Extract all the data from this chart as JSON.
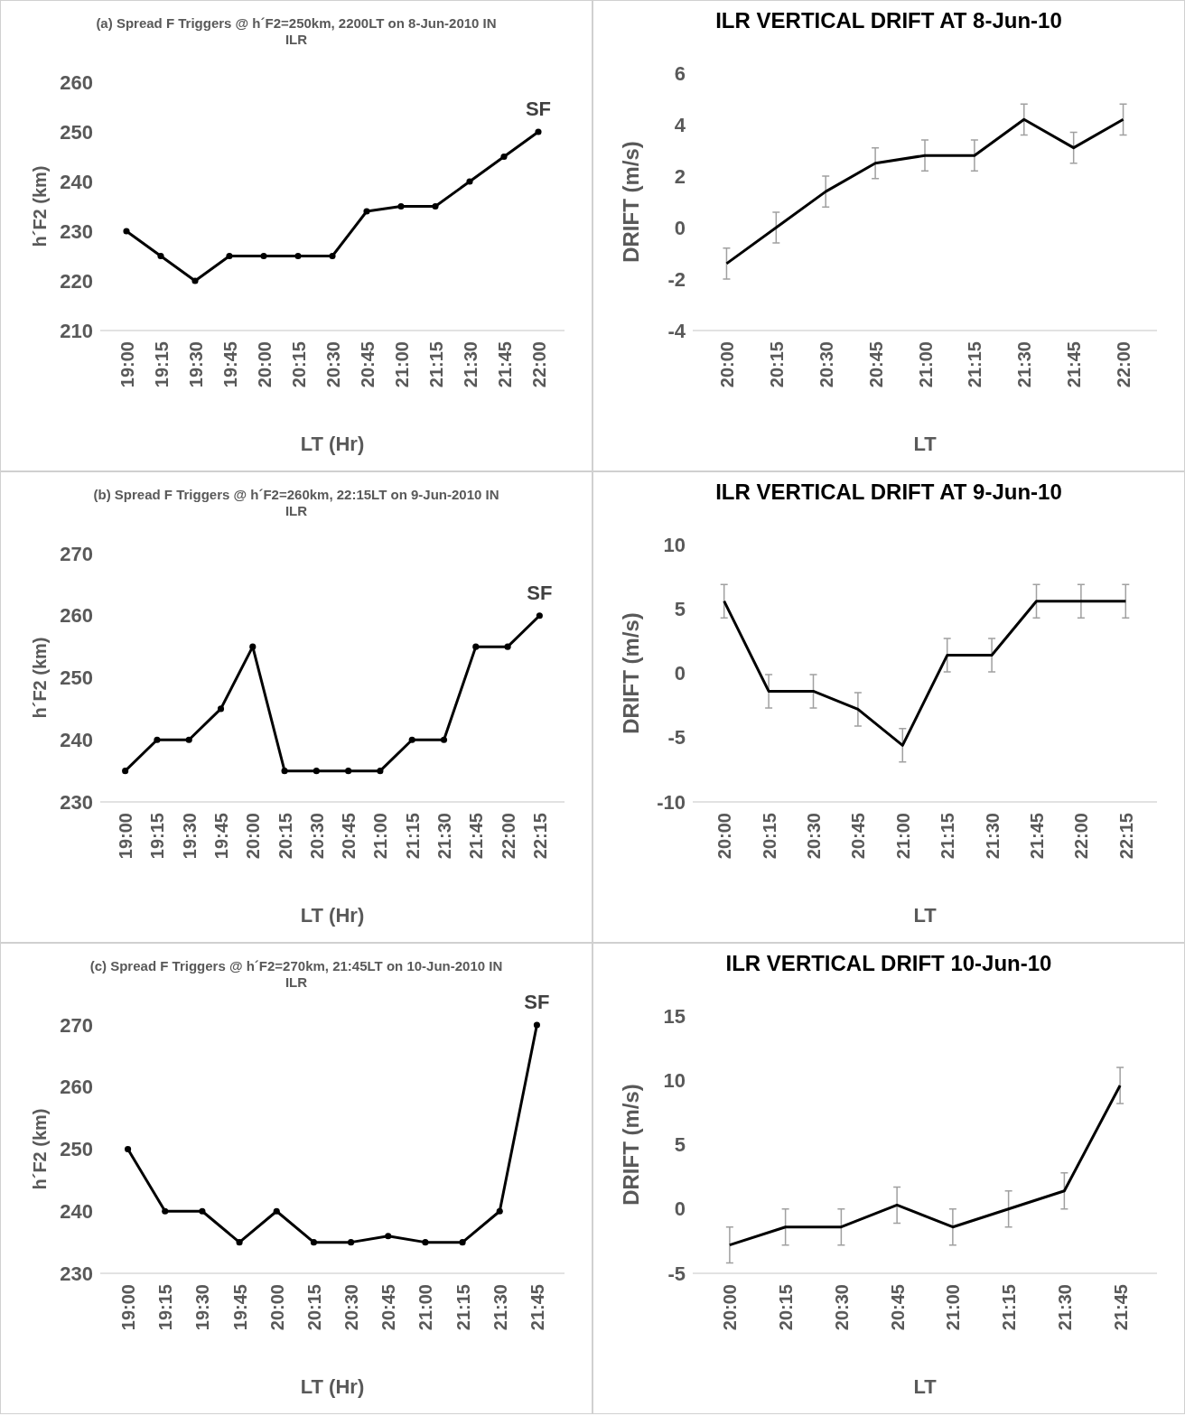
{
  "chart_data": [
    {
      "type": "line",
      "title": "(a) Spread F Triggers @ h´F2=250km, 2200LT on 8-Jun-2010 IN ILR",
      "xlabel": "LT (Hr)",
      "ylabel": "h´F2 (km)",
      "categories": [
        "19:00",
        "19:15",
        "19:30",
        "19:45",
        "20:00",
        "20:15",
        "20:30",
        "20:45",
        "21:00",
        "21:15",
        "21:30",
        "21:45",
        "22:00"
      ],
      "values": [
        230,
        225,
        220,
        225,
        225,
        225,
        225,
        234,
        235,
        235,
        240,
        245,
        250
      ],
      "color": "#000000",
      "marker": "circle",
      "ylim": [
        210,
        260
      ],
      "yticks": [
        210,
        220,
        230,
        240,
        250,
        260
      ],
      "annotations": [
        {
          "text": "SF",
          "x": "22:00",
          "y": 250
        }
      ]
    },
    {
      "type": "line",
      "title": "ILR VERTICAL DRIFT AT 8-Jun-10",
      "xlabel": "LT",
      "ylabel": "DRIFT (m/s)",
      "categories": [
        "20:00",
        "20:15",
        "20:30",
        "20:45",
        "21:00",
        "21:15",
        "21:30",
        "21:45",
        "22:00"
      ],
      "values": [
        -1.4,
        0,
        1.4,
        2.5,
        2.8,
        2.8,
        4.2,
        3.1,
        4.2
      ],
      "errors": [
        0.6,
        0.6,
        0.6,
        0.6,
        0.6,
        0.6,
        0.6,
        0.6,
        0.6
      ],
      "color": "#000000",
      "ylim": [
        -4,
        6
      ],
      "yticks": [
        -4,
        -2,
        0,
        2,
        4,
        6
      ]
    },
    {
      "type": "line",
      "title": "(b) Spread F Triggers @ h´F2=260km, 22:15LT on 9-Jun-2010 IN ILR",
      "xlabel": "LT (Hr)",
      "ylabel": "h´F2 (km)",
      "categories": [
        "19:00",
        "19:15",
        "19:30",
        "19:45",
        "20:00",
        "20:15",
        "20:30",
        "20:45",
        "21:00",
        "21:15",
        "21:30",
        "21:45",
        "22:00",
        "22:15"
      ],
      "values": [
        235,
        240,
        240,
        245,
        255,
        235,
        235,
        235,
        235,
        240,
        240,
        255,
        255,
        260
      ],
      "color": "#000000",
      "marker": "circle",
      "ylim": [
        230,
        270
      ],
      "yticks": [
        230,
        240,
        250,
        260,
        270
      ],
      "annotations": [
        {
          "text": "SF",
          "x": "22:15",
          "y": 260
        }
      ]
    },
    {
      "type": "line",
      "title": "ILR VERTICAL DRIFT AT 9-Jun-10",
      "xlabel": "LT",
      "ylabel": "DRIFT (m/s)",
      "categories": [
        "20:00",
        "20:15",
        "20:30",
        "20:45",
        "21:00",
        "21:15",
        "21:30",
        "21:45",
        "22:00",
        "22:15"
      ],
      "values": [
        5.6,
        -1.4,
        -1.4,
        -2.8,
        -5.6,
        1.4,
        1.4,
        5.6,
        5.6,
        5.6
      ],
      "errors": [
        1.3,
        1.3,
        1.3,
        1.3,
        1.3,
        1.3,
        1.3,
        1.3,
        1.3,
        1.3
      ],
      "color": "#000000",
      "ylim": [
        -10,
        10
      ],
      "yticks": [
        -10,
        -5,
        0,
        5,
        10
      ]
    },
    {
      "type": "line",
      "title": "(c) Spread F Triggers @ h´F2=270km, 21:45LT on 10-Jun-2010 IN ILR",
      "xlabel": "LT (Hr)",
      "ylabel": "h´F2 (km)",
      "categories": [
        "19:00",
        "19:15",
        "19:30",
        "19:45",
        "20:00",
        "20:15",
        "20:30",
        "20:45",
        "21:00",
        "21:15",
        "21:30",
        "21:45"
      ],
      "values": [
        250,
        240,
        240,
        235,
        240,
        235,
        235,
        236,
        235,
        235,
        240,
        270
      ],
      "color": "#000000",
      "marker": "circle",
      "ylim": [
        230,
        270
      ],
      "yticks": [
        230,
        240,
        250,
        260,
        270
      ],
      "annotations": [
        {
          "text": "SF",
          "x": "21:45",
          "y": 270
        }
      ]
    },
    {
      "type": "line",
      "title": "ILR VERTICAL DRIFT 10-Jun-10",
      "xlabel": "LT",
      "ylabel": "DRIFT (m/s)",
      "categories": [
        "20:00",
        "20:15",
        "20:30",
        "20:45",
        "21:00",
        "21:15",
        "21:30",
        "21:45"
      ],
      "values": [
        -2.8,
        -1.4,
        -1.4,
        0.3,
        -1.4,
        0,
        1.4,
        9.6
      ],
      "errors": [
        1.4,
        1.4,
        1.4,
        1.4,
        1.4,
        1.4,
        1.4,
        1.4
      ],
      "color": "#000000",
      "ylim": [
        -5,
        15
      ],
      "yticks": [
        -5,
        0,
        5,
        10,
        15
      ]
    }
  ]
}
